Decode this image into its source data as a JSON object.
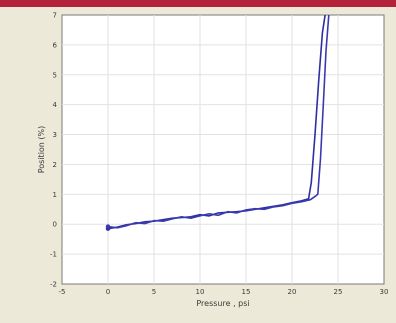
{
  "chart_data": {
    "type": "line",
    "title": "",
    "xlabel": "Pressure , psi",
    "ylabel": "Position (%)",
    "xlim": [
      -5,
      30
    ],
    "ylim": [
      -2,
      7
    ],
    "x_ticks": [
      -5,
      0,
      5,
      10,
      15,
      20,
      25,
      30
    ],
    "y_ticks": [
      -2,
      -1,
      0,
      1,
      2,
      3,
      4,
      5,
      6,
      7
    ],
    "grid": true,
    "legend": "none",
    "series": [
      {
        "color": "#2e2fa0",
        "x": [
          0,
          1,
          2,
          3,
          4,
          5,
          6,
          7,
          8,
          9,
          10,
          11,
          12,
          13,
          14,
          15,
          16,
          17,
          18,
          19,
          20,
          21,
          21.8,
          22.1,
          22.5,
          22.9,
          23.3,
          23.6
        ],
        "y": [
          -0.15,
          -0.1,
          -0.02,
          0.02,
          0.08,
          0.1,
          0.15,
          0.2,
          0.22,
          0.25,
          0.32,
          0.28,
          0.38,
          0.4,
          0.42,
          0.45,
          0.5,
          0.55,
          0.6,
          0.65,
          0.72,
          0.78,
          0.85,
          1.4,
          3.0,
          4.8,
          6.4,
          7.0
        ]
      },
      {
        "color": "#3a3ab0",
        "x": [
          0,
          1,
          2,
          3,
          4,
          5,
          6,
          7,
          8,
          9,
          10,
          11,
          12,
          13,
          14,
          15,
          16,
          17,
          18,
          19,
          20,
          21,
          22,
          22.6,
          22.8,
          23.1,
          23.4,
          23.7,
          24.0
        ],
        "y": [
          -0.08,
          -0.12,
          -0.05,
          0.05,
          0.02,
          0.12,
          0.1,
          0.18,
          0.25,
          0.2,
          0.28,
          0.35,
          0.3,
          0.42,
          0.38,
          0.48,
          0.52,
          0.5,
          0.58,
          0.62,
          0.7,
          0.75,
          0.82,
          0.95,
          1.0,
          2.2,
          4.0,
          5.8,
          7.0
        ]
      }
    ]
  }
}
